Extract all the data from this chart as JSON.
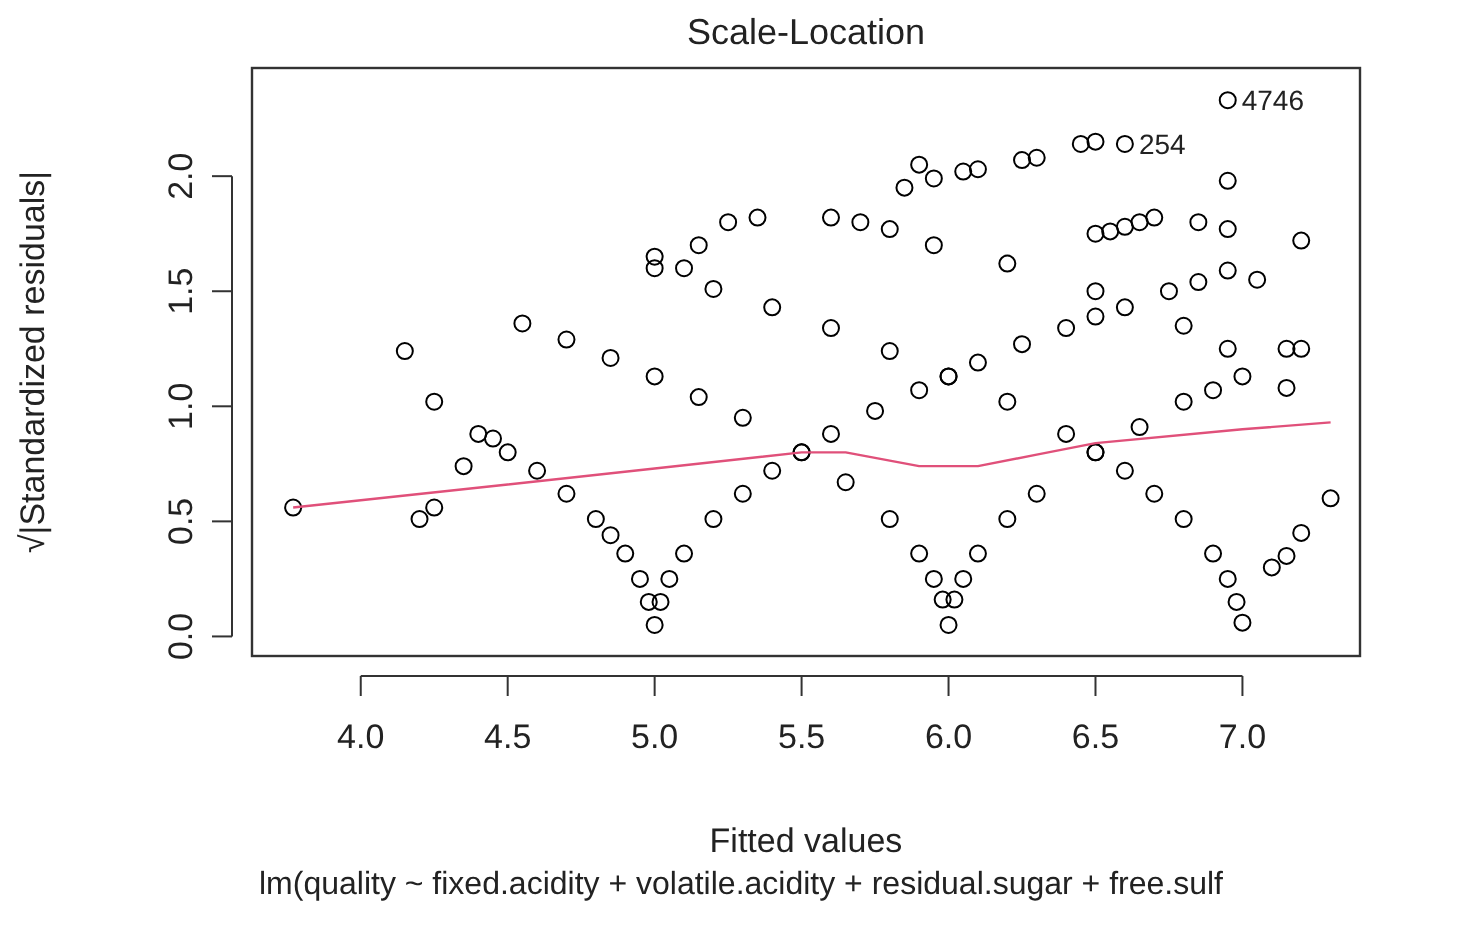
{
  "chart_data": {
    "type": "scatter",
    "title": "Scale-Location",
    "xlabel": "Fitted values",
    "ylabel": "√|Standardized residuals|",
    "annotations": [
      "lm(quality ~ fixed.acidity + volatile.acidity + residual.sugar + free.sulf",
      {
        "text": "4746",
        "x": 6.95,
        "y": 2.33
      },
      {
        "text": "254",
        "x": 6.6,
        "y": 2.14
      }
    ],
    "xlim": [
      3.63,
      7.4
    ],
    "ylim": [
      -0.085,
      2.47
    ],
    "xticks": [
      {
        "value": 4,
        "label": "4.0"
      },
      4.5,
      {
        "value": 5,
        "label": "5.0"
      },
      5.5,
      {
        "value": 6,
        "label": "6.0"
      },
      6.5,
      {
        "value": 7,
        "label": "7.0"
      }
    ],
    "yticks": [
      {
        "value": 0,
        "label": "0.0"
      },
      0.5,
      {
        "value": 1,
        "label": "1.0"
      },
      1.5,
      {
        "value": 2,
        "label": "2.0"
      }
    ],
    "grid": false,
    "series": [
      {
        "color": "#000000",
        "marker": "circle",
        "x": [
          4.4,
          4.5,
          4.6,
          4.7,
          4.8,
          4.85,
          4.9,
          4.95,
          4.98,
          5.0,
          5.02,
          5.05,
          5.1,
          5.2,
          5.3,
          5.4,
          5.5,
          5.6,
          5.75,
          5.9,
          6.0,
          6.1,
          6.25,
          6.4,
          6.5,
          6.6,
          6.75,
          6.85,
          6.95,
          4.55,
          4.7,
          4.85,
          5.0,
          5.15,
          5.3,
          5.5,
          5.65,
          5.8,
          5.9,
          5.95,
          5.98,
          6.0,
          6.02,
          6.05,
          6.1,
          6.2,
          6.3,
          6.5,
          6.65,
          6.8,
          6.9,
          7.0,
          5.0,
          5.2,
          5.4,
          5.6,
          5.8,
          6.0,
          6.2,
          6.4,
          6.5,
          6.6,
          6.7,
          6.8,
          6.9,
          6.95,
          6.98,
          7.0,
          5.25,
          5.35,
          5.6,
          5.7,
          5.8,
          5.95,
          6.2,
          6.5,
          6.8,
          6.95,
          3.77,
          4.15,
          4.2,
          4.25,
          4.25,
          4.35,
          4.45,
          5.0,
          5.1,
          5.15,
          5.85,
          5.9,
          5.95,
          6.05,
          6.1,
          6.25,
          6.3,
          6.45,
          6.5,
          6.6,
          6.95,
          6.95,
          7.2,
          6.5,
          6.55,
          6.6,
          6.65,
          6.7,
          6.85,
          6.95,
          7.05,
          7.15,
          7.2,
          7.15,
          7.1,
          7.15,
          7.2,
          7.3
        ],
        "values": [
          0.88,
          0.8,
          0.72,
          0.62,
          0.51,
          0.44,
          0.36,
          0.25,
          0.15,
          0.05,
          0.15,
          0.25,
          0.36,
          0.51,
          0.62,
          0.72,
          0.8,
          0.88,
          0.98,
          1.07,
          1.13,
          1.19,
          1.27,
          1.34,
          1.39,
          1.43,
          1.5,
          1.54,
          1.59,
          1.36,
          1.29,
          1.21,
          1.13,
          1.04,
          0.95,
          0.8,
          0.67,
          0.51,
          0.36,
          0.25,
          0.16,
          0.05,
          0.16,
          0.25,
          0.36,
          0.51,
          0.62,
          0.8,
          0.91,
          1.02,
          1.07,
          1.13,
          1.6,
          1.51,
          1.43,
          1.34,
          1.24,
          1.13,
          1.02,
          0.88,
          0.8,
          0.72,
          0.62,
          0.51,
          0.36,
          0.25,
          0.15,
          0.06,
          1.8,
          1.82,
          1.82,
          1.8,
          1.77,
          1.7,
          1.62,
          1.5,
          1.35,
          1.25,
          0.56,
          1.24,
          0.51,
          0.56,
          1.02,
          0.74,
          0.86,
          1.65,
          1.6,
          1.7,
          1.95,
          2.05,
          1.99,
          2.02,
          2.03,
          2.07,
          2.08,
          2.14,
          2.15,
          2.14,
          2.33,
          1.98,
          1.72,
          1.75,
          1.76,
          1.78,
          1.8,
          1.82,
          1.8,
          1.77,
          1.55,
          1.25,
          1.25,
          1.08,
          0.3,
          0.35,
          0.45,
          0.6
        ]
      },
      {
        "type": "line",
        "color": "#e0507a",
        "x": [
          3.77,
          4.5,
          5.0,
          5.5,
          5.65,
          5.9,
          6.1,
          6.3,
          6.5,
          7.0,
          7.3
        ],
        "values": [
          0.56,
          0.66,
          0.73,
          0.8,
          0.8,
          0.74,
          0.74,
          0.79,
          0.84,
          0.9,
          0.93
        ]
      }
    ]
  }
}
